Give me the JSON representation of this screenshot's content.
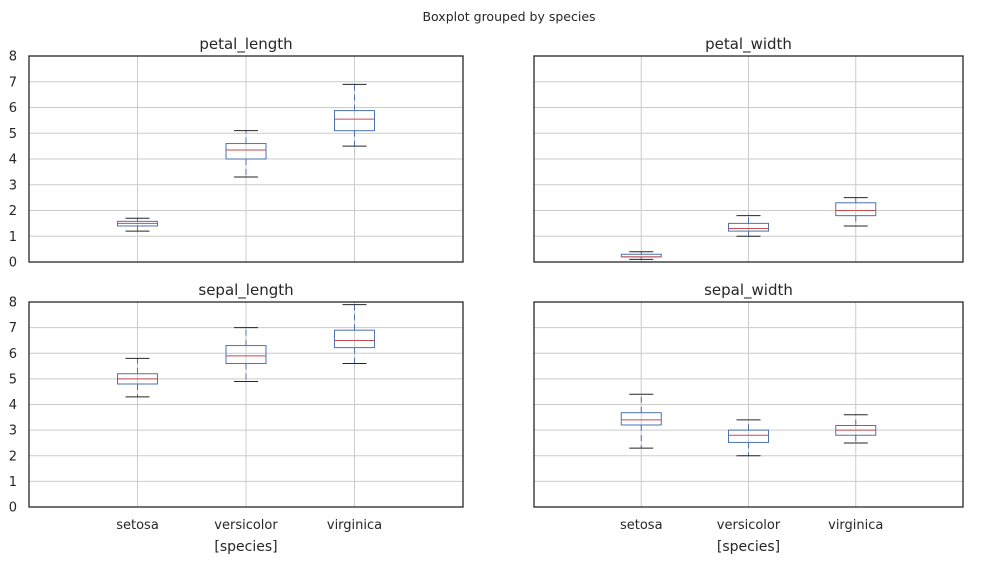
{
  "chart_data": {
    "type": "boxplot",
    "suptitle": "Boxplot grouped by species",
    "categories": [
      "setosa",
      "versicolor",
      "virginica"
    ],
    "xlabel": "[species]",
    "ylim": [
      0,
      8
    ],
    "yticks": [
      0,
      1,
      2,
      3,
      4,
      5,
      6,
      7,
      8
    ],
    "sharey": true,
    "grid": true,
    "box_color": "#4c72b0",
    "median_color": "#c44e52",
    "cap_color": "#262626",
    "grid_color": "#cccccc",
    "panels": [
      {
        "title": "petal_length",
        "boxes": [
          {
            "category": "setosa",
            "whislo": 1.2,
            "q1": 1.4,
            "med": 1.5,
            "q3": 1.58,
            "whishi": 1.7
          },
          {
            "category": "versicolor",
            "whislo": 3.3,
            "q1": 4.0,
            "med": 4.35,
            "q3": 4.6,
            "whishi": 5.1
          },
          {
            "category": "virginica",
            "whislo": 4.5,
            "q1": 5.1,
            "med": 5.55,
            "q3": 5.88,
            "whishi": 6.9
          }
        ]
      },
      {
        "title": "petal_width",
        "boxes": [
          {
            "category": "setosa",
            "whislo": 0.1,
            "q1": 0.2,
            "med": 0.2,
            "q3": 0.3,
            "whishi": 0.4
          },
          {
            "category": "versicolor",
            "whislo": 1.0,
            "q1": 1.2,
            "med": 1.3,
            "q3": 1.5,
            "whishi": 1.8
          },
          {
            "category": "virginica",
            "whislo": 1.4,
            "q1": 1.8,
            "med": 2.0,
            "q3": 2.3,
            "whishi": 2.5
          }
        ]
      },
      {
        "title": "sepal_length",
        "boxes": [
          {
            "category": "setosa",
            "whislo": 4.3,
            "q1": 4.8,
            "med": 5.0,
            "q3": 5.2,
            "whishi": 5.8
          },
          {
            "category": "versicolor",
            "whislo": 4.9,
            "q1": 5.6,
            "med": 5.9,
            "q3": 6.3,
            "whishi": 7.0
          },
          {
            "category": "virginica",
            "whislo": 5.6,
            "q1": 6.22,
            "med": 6.5,
            "q3": 6.9,
            "whishi": 7.9
          }
        ]
      },
      {
        "title": "sepal_width",
        "boxes": [
          {
            "category": "setosa",
            "whislo": 2.3,
            "q1": 3.2,
            "med": 3.4,
            "q3": 3.68,
            "whishi": 4.4
          },
          {
            "category": "versicolor",
            "whislo": 2.0,
            "q1": 2.52,
            "med": 2.8,
            "q3": 3.0,
            "whishi": 3.4
          },
          {
            "category": "virginica",
            "whislo": 2.5,
            "q1": 2.8,
            "med": 3.0,
            "q3": 3.18,
            "whishi": 3.6
          }
        ]
      }
    ]
  }
}
